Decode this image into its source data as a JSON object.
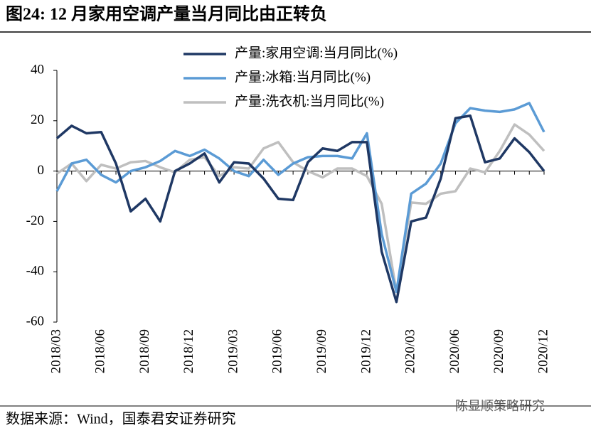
{
  "chart_data": {
    "type": "line",
    "title": "图24: 12 月家用空调产量当月同比由正转负",
    "source": "数据来源：Wind，国泰君安证券研究",
    "watermark": "陈显顺策略研究",
    "categories": [
      "2018/03",
      null,
      null,
      "2018/06",
      null,
      null,
      "2018/09",
      null,
      null,
      "2018/12",
      null,
      null,
      "2019/03",
      null,
      null,
      "2019/06",
      null,
      null,
      "2019/09",
      null,
      null,
      "2019/12",
      null,
      null,
      "2020/03",
      null,
      null,
      "2020/06",
      null,
      null,
      "2020/09",
      null,
      null,
      "2020/12"
    ],
    "series": [
      {
        "name": "产量:家用空调:当月同比(%)",
        "color": "#1f3864",
        "values": [
          13,
          18,
          15,
          15.5,
          3,
          -16,
          -11,
          -20,
          0,
          3,
          7,
          -4.5,
          3.5,
          3,
          -3,
          -11,
          -11.5,
          3.5,
          9,
          8,
          11.5,
          11.5,
          -32,
          -52,
          -20,
          -18.5,
          -3,
          21,
          22,
          3.5,
          5,
          13,
          7.5,
          0
        ]
      },
      {
        "name": "产量:冰箱:当月同比(%)",
        "color": "#5b9bd5",
        "values": [
          -8,
          3,
          4.5,
          -1.5,
          -4.5,
          0,
          1.5,
          4,
          8,
          6,
          8.5,
          5,
          0,
          -2,
          4.5,
          -1.5,
          3,
          5.5,
          6,
          6,
          5,
          15,
          -25,
          -48,
          -9,
          -5,
          3,
          19,
          25,
          24,
          23.5,
          24.5,
          27,
          15.5
        ]
      },
      {
        "name": "产量:洗衣机:当月同比(%)",
        "color": "#bfbfbf",
        "values": [
          -1,
          3,
          -4,
          2.5,
          1,
          3.5,
          4,
          1.5,
          -0.5,
          4.5,
          5.5,
          -2,
          1.5,
          1,
          9,
          11.5,
          3.5,
          0,
          -2.5,
          1,
          1,
          -2,
          -13,
          -48,
          -12.5,
          -13,
          -9,
          -8,
          1,
          -0.5,
          8,
          18.5,
          14.5,
          8
        ]
      }
    ],
    "ylim": [
      -60,
      40
    ],
    "yticks": [
      -60,
      -40,
      -20,
      0,
      20,
      40
    ]
  }
}
